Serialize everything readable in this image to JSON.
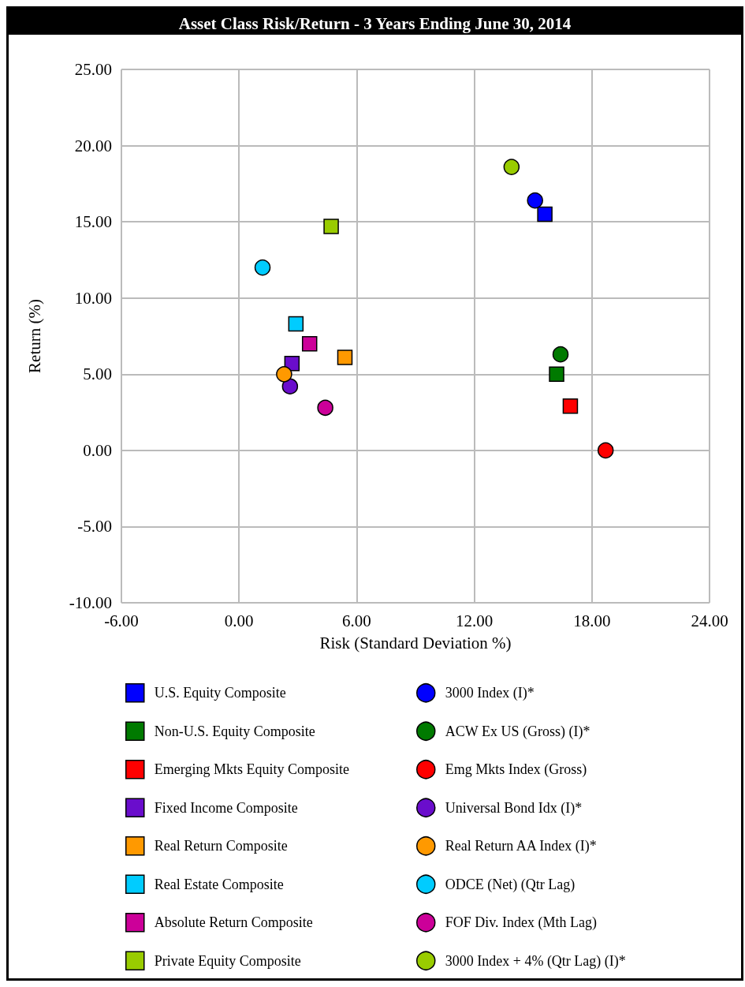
{
  "chart_data": {
    "type": "scatter",
    "title": "Asset Class Risk/Return - 3 Years Ending June 30, 2014",
    "xlabel": "Risk (Standard Deviation %)",
    "ylabel": "Return (%)",
    "xlim": [
      -6,
      24
    ],
    "xticks": [
      {
        "value": -6,
        "label": "-6.00"
      },
      {
        "value": 0,
        "label": "0.00"
      },
      {
        "value": 6,
        "label": "6.00"
      },
      {
        "value": 12,
        "label": "12.00"
      },
      {
        "value": 18,
        "label": "18.00"
      },
      {
        "value": 24,
        "label": "24.00"
      }
    ],
    "ylim": [
      -10,
      25
    ],
    "yticks": [
      {
        "value": -10,
        "label": "-10.00"
      },
      {
        "value": -5,
        "label": "-5.00"
      },
      {
        "value": 0,
        "label": "0.00"
      },
      {
        "value": 5,
        "label": "5.00"
      },
      {
        "value": 10,
        "label": "10.00"
      },
      {
        "value": 15,
        "label": "15.00"
      },
      {
        "value": 20,
        "label": "20.00"
      },
      {
        "value": 25,
        "label": "25.00"
      }
    ],
    "grid": true,
    "legend": "bottom",
    "series": [
      {
        "name": "U.S. Equity Composite",
        "color": "#0000ff",
        "marker": "square",
        "x": [
          15.6
        ],
        "values": [
          15.5
        ]
      },
      {
        "name": "Non-U.S. Equity Composite",
        "color": "#007a00",
        "marker": "square",
        "x": [
          16.2
        ],
        "values": [
          5.0
        ]
      },
      {
        "name": "Emerging Mkts Equity Composite",
        "color": "#ff0000",
        "marker": "square",
        "x": [
          16.9
        ],
        "values": [
          2.9
        ]
      },
      {
        "name": "Fixed Income Composite",
        "color": "#6a0dcc",
        "marker": "square",
        "x": [
          2.7
        ],
        "values": [
          5.7
        ]
      },
      {
        "name": "Real Return Composite",
        "color": "#ff9900",
        "marker": "square",
        "x": [
          5.4
        ],
        "values": [
          6.1
        ]
      },
      {
        "name": "Real Estate Composite",
        "color": "#00ccff",
        "marker": "square",
        "x": [
          2.9
        ],
        "values": [
          8.3
        ]
      },
      {
        "name": "Absolute Return Composite",
        "color": "#cc0099",
        "marker": "square",
        "x": [
          3.6
        ],
        "values": [
          7.0
        ]
      },
      {
        "name": "Private Equity Composite",
        "color": "#99cc00",
        "marker": "square",
        "x": [
          4.7
        ],
        "values": [
          14.7
        ]
      },
      {
        "name": "3000 Index (I)*",
        "color": "#0000ff",
        "marker": "circle",
        "x": [
          15.1
        ],
        "values": [
          16.4
        ]
      },
      {
        "name": "ACW Ex US (Gross) (I)*",
        "color": "#007a00",
        "marker": "circle",
        "x": [
          16.4
        ],
        "values": [
          6.3
        ]
      },
      {
        "name": "Emg Mkts Index (Gross)",
        "color": "#ff0000",
        "marker": "circle",
        "x": [
          18.7
        ],
        "values": [
          0.0
        ]
      },
      {
        "name": "Universal Bond Idx (I)*",
        "color": "#6a0dcc",
        "marker": "circle",
        "x": [
          2.6
        ],
        "values": [
          4.2
        ]
      },
      {
        "name": "Real Return AA Index (I)*",
        "color": "#ff9900",
        "marker": "circle",
        "x": [
          2.3
        ],
        "values": [
          5.0
        ]
      },
      {
        "name": "ODCE (Net) (Qtr Lag)",
        "color": "#00ccff",
        "marker": "circle",
        "x": [
          1.2
        ],
        "values": [
          12.0
        ]
      },
      {
        "name": "FOF Div. Index (Mth Lag)",
        "color": "#cc0099",
        "marker": "circle",
        "x": [
          4.4
        ],
        "values": [
          2.8
        ]
      },
      {
        "name": "3000 Index + 4% (Qtr Lag) (I)*",
        "color": "#99cc00",
        "marker": "circle",
        "x": [
          13.9
        ],
        "values": [
          18.6
        ]
      }
    ]
  }
}
